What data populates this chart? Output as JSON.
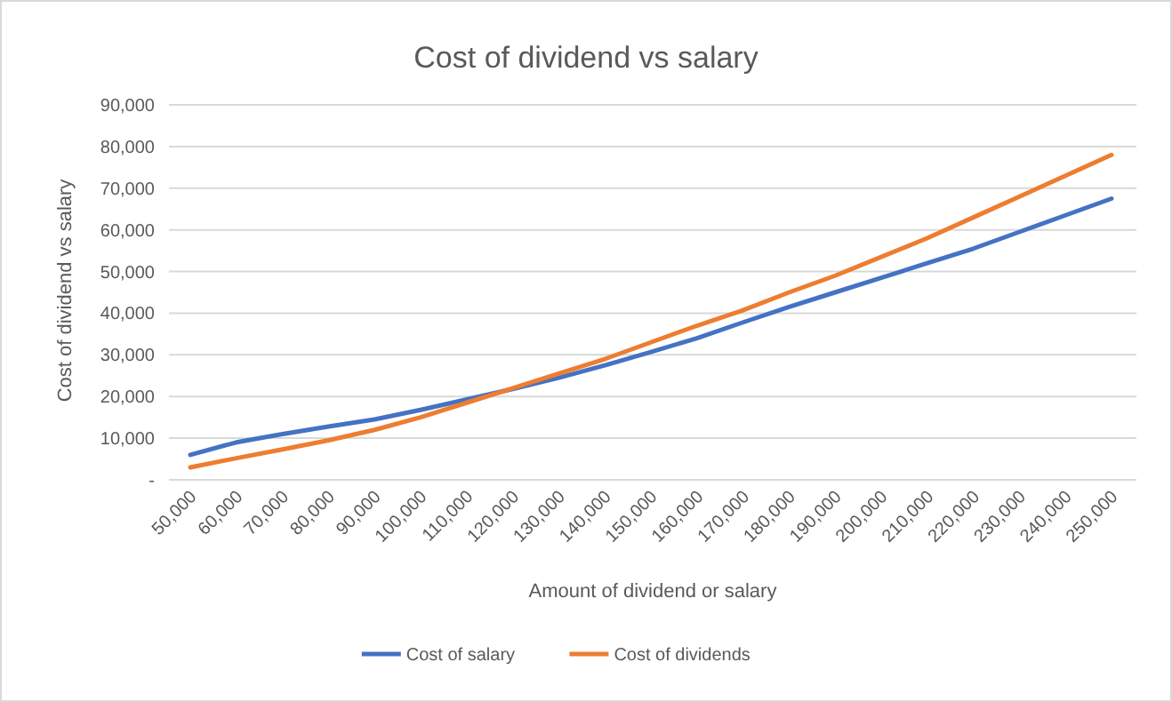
{
  "chart_data": {
    "type": "line",
    "title": "Cost of dividend vs salary",
    "xlabel": "Amount of dividend or salary",
    "ylabel": "Cost of dividend vs salary",
    "categories": [
      "50,000",
      "60,000",
      "70,000",
      "80,000",
      "90,000",
      "100,000",
      "110,000",
      "120,000",
      "130,000",
      "140,000",
      "150,000",
      "160,000",
      "170,000",
      "180,000",
      "190,000",
      "200,000",
      "210,000",
      "220,000",
      "230,000",
      "240,000",
      "250,000"
    ],
    "series": [
      {
        "name": "Cost of salary",
        "color": "#4472c4",
        "values": [
          6000,
          9000,
          11000,
          12800,
          14500,
          16800,
          19300,
          21800,
          24500,
          27500,
          30700,
          34000,
          37800,
          41500,
          45000,
          48500,
          52000,
          55500,
          59500,
          63500,
          67500
        ]
      },
      {
        "name": "Cost of dividends",
        "color": "#ed7d31",
        "values": [
          3000,
          5200,
          7300,
          9500,
          12000,
          15000,
          18500,
          22000,
          25500,
          29000,
          33000,
          37000,
          40700,
          45000,
          49000,
          53500,
          58000,
          63000,
          68000,
          73000,
          78000
        ]
      }
    ],
    "ylim": [
      0,
      90000
    ],
    "yticks": [
      {
        "value": 0,
        "label": "-"
      },
      {
        "value": 10000,
        "label": "10,000"
      },
      {
        "value": 20000,
        "label": "20,000"
      },
      {
        "value": 30000,
        "label": "30,000"
      },
      {
        "value": 40000,
        "label": "40,000"
      },
      {
        "value": 50000,
        "label": "50,000"
      },
      {
        "value": 60000,
        "label": "60,000"
      },
      {
        "value": 70000,
        "label": "70,000"
      },
      {
        "value": 80000,
        "label": "80,000"
      },
      {
        "value": 90000,
        "label": "90,000"
      }
    ],
    "grid": "y",
    "legend": "bottom",
    "marker": "none",
    "line_style": "solid"
  }
}
